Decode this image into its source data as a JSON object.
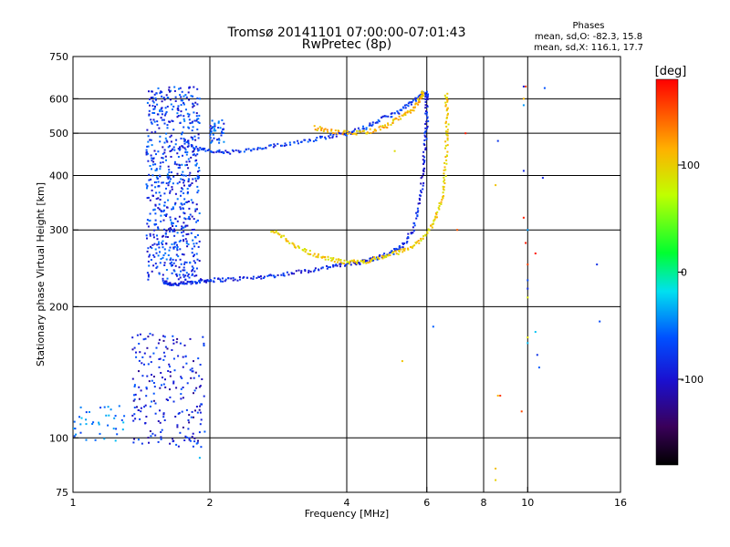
{
  "chart_data": {
    "type": "scatter",
    "title": "Tromsø 20141101 07:00:00-07:01:43",
    "subtitle": "RwPretec (8p)",
    "xlabel": "Frequency [MHz]",
    "ylabel": "Stationary phase Virtual Height [km]",
    "x_scale": "log",
    "y_scale": "log",
    "xlim": [
      1,
      16
    ],
    "ylim": [
      75,
      750
    ],
    "x_ticks": [
      1,
      2,
      4,
      6,
      8,
      10,
      16
    ],
    "y_ticks": [
      75,
      100,
      200,
      300,
      400,
      500,
      600,
      750
    ],
    "x_tick_labels": [
      "1",
      "2",
      "4",
      "6",
      "8",
      "10",
      "16"
    ],
    "y_tick_labels": [
      "75",
      "100",
      "200",
      "300",
      "400",
      "500",
      "600",
      "750"
    ],
    "x_gridlines": [
      2,
      4,
      6,
      8,
      10
    ],
    "y_gridlines": [
      100,
      200,
      300,
      400,
      500,
      600
    ],
    "stats": {
      "heading": "Phases",
      "o_line": "mean, sd,O: -82.3, 15.8",
      "x_line": "mean, sd,X: 116.1, 17.7"
    },
    "colorbar": {
      "label": "[deg]",
      "ticks": [
        100,
        0,
        -100
      ],
      "tick_labels": [
        "100",
        "0",
        "-100"
      ],
      "range": [
        -180,
        180
      ]
    },
    "series": [
      {
        "type": "curve",
        "phase": -100,
        "points": [
          [
            1.58,
            228
          ],
          [
            1.62,
            226
          ],
          [
            1.7,
            225
          ],
          [
            1.8,
            227
          ],
          [
            1.9,
            229
          ],
          [
            2.0,
            230
          ],
          [
            2.2,
            231
          ],
          [
            2.5,
            233
          ],
          [
            2.8,
            236
          ],
          [
            3.2,
            241
          ],
          [
            3.6,
            246
          ],
          [
            4.0,
            250
          ],
          [
            4.3,
            253
          ],
          [
            4.6,
            258
          ],
          [
            5.0,
            265
          ],
          [
            5.3,
            276
          ],
          [
            5.6,
            300
          ],
          [
            5.8,
            350
          ],
          [
            5.9,
            410
          ],
          [
            5.95,
            470
          ],
          [
            6.0,
            530
          ],
          [
            6.0,
            600
          ],
          [
            5.98,
            620
          ]
        ]
      },
      {
        "type": "curve",
        "phase": -90,
        "points": [
          [
            1.75,
            485
          ],
          [
            1.85,
            462
          ],
          [
            2.0,
            455
          ],
          [
            2.2,
            452
          ],
          [
            2.5,
            458
          ],
          [
            2.8,
            468
          ],
          [
            3.2,
            480
          ],
          [
            3.6,
            490
          ],
          [
            4.0,
            500
          ],
          [
            4.4,
            515
          ],
          [
            4.8,
            540
          ],
          [
            5.2,
            560
          ],
          [
            5.6,
            590
          ],
          [
            5.9,
            620
          ]
        ]
      },
      {
        "type": "curve",
        "phase": 100,
        "points": [
          [
            2.75,
            300
          ],
          [
            2.95,
            285
          ],
          [
            3.2,
            270
          ],
          [
            3.5,
            260
          ],
          [
            3.8,
            255
          ],
          [
            4.1,
            253
          ],
          [
            4.4,
            254
          ],
          [
            4.8,
            260
          ],
          [
            5.2,
            267
          ],
          [
            5.6,
            275
          ],
          [
            6.0,
            295
          ],
          [
            6.3,
            320
          ],
          [
            6.5,
            360
          ],
          [
            6.6,
            420
          ],
          [
            6.65,
            490
          ],
          [
            6.65,
            560
          ],
          [
            6.63,
            620
          ]
        ]
      },
      {
        "type": "curve",
        "phase": 110,
        "points": [
          [
            3.4,
            515
          ],
          [
            3.7,
            505
          ],
          [
            4.1,
            500
          ],
          [
            4.5,
            505
          ],
          [
            4.9,
            520
          ],
          [
            5.3,
            545
          ],
          [
            5.6,
            570
          ],
          [
            5.8,
            600
          ],
          [
            5.9,
            620
          ]
        ]
      },
      {
        "type": "cluster",
        "phase": -90,
        "x": [
          1.45,
          1.9
        ],
        "y": [
          230,
          640
        ],
        "n": 650
      },
      {
        "type": "cluster",
        "phase": -105,
        "x": [
          1.35,
          1.95
        ],
        "y": [
          95,
          175
        ],
        "n": 220
      },
      {
        "type": "cluster",
        "phase": -60,
        "x": [
          1.0,
          1.3
        ],
        "y": [
          98,
          120
        ],
        "n": 40
      },
      {
        "type": "cluster",
        "phase": -80,
        "x": [
          2.0,
          2.15
        ],
        "y": [
          470,
          540
        ],
        "n": 40
      },
      {
        "type": "points",
        "phase": 100,
        "points": [
          [
            8.5,
            85
          ],
          [
            8.5,
            80
          ],
          [
            8.5,
            380
          ],
          [
            8.6,
            125
          ],
          [
            9.8,
            600
          ],
          [
            10.0,
            170
          ],
          [
            10.0,
            210
          ],
          [
            4.8,
            520
          ],
          [
            5.3,
            150
          ],
          [
            5.1,
            455
          ]
        ]
      },
      {
        "type": "points",
        "phase": -90,
        "points": [
          [
            8.6,
            480
          ],
          [
            9.8,
            410
          ],
          [
            9.8,
            640
          ],
          [
            10.0,
            220
          ],
          [
            10.0,
            230
          ],
          [
            10.8,
            395
          ],
          [
            10.9,
            635
          ],
          [
            14.2,
            250
          ],
          [
            14.4,
            185
          ],
          [
            6.2,
            180
          ],
          [
            10.5,
            155
          ],
          [
            10.6,
            145
          ]
        ]
      },
      {
        "type": "points",
        "phase": 160,
        "points": [
          [
            9.8,
            320
          ],
          [
            9.9,
            280
          ],
          [
            9.9,
            640
          ],
          [
            9.7,
            115
          ],
          [
            10.0,
            250
          ],
          [
            10.4,
            265
          ],
          [
            8.7,
            125
          ],
          [
            7.0,
            300
          ],
          [
            7.3,
            500
          ]
        ]
      },
      {
        "type": "points",
        "phase": -40,
        "points": [
          [
            9.8,
            580
          ],
          [
            10.0,
            300
          ],
          [
            10.0,
            165
          ],
          [
            10.4,
            175
          ],
          [
            1.9,
            90
          ]
        ]
      }
    ]
  }
}
